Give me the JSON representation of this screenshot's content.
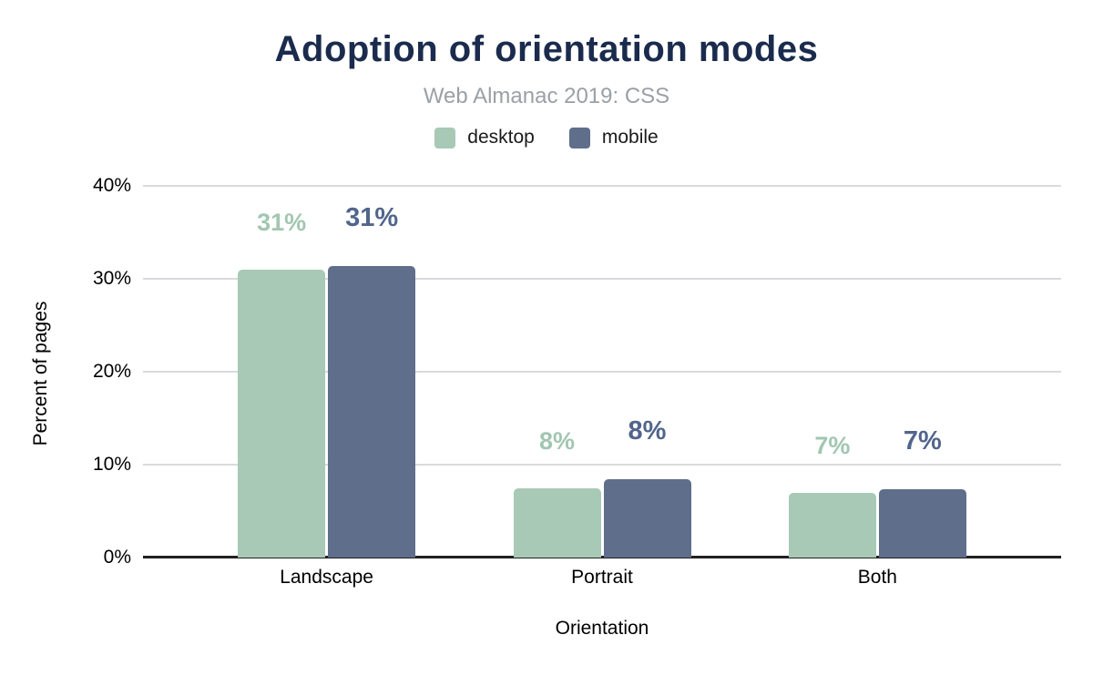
{
  "figure": {
    "title": "Adoption of orientation modes",
    "subtitle": "Web Almanac 2019: CSS"
  },
  "chart_data": {
    "type": "bar",
    "title": "Adoption of orientation modes",
    "subtitle": "Web Almanac 2019: CSS",
    "categories": [
      "Landscape",
      "Portrait",
      "Both"
    ],
    "series": [
      {
        "name": "desktop",
        "values": [
          31.0,
          7.5,
          7.0
        ],
        "labels": [
          "31%",
          "8%",
          "7%"
        ],
        "color": "#a8c9b6",
        "label_color": "#a2c6b1"
      },
      {
        "name": "mobile",
        "values": [
          31.4,
          8.4,
          7.4
        ],
        "labels": [
          "31%",
          "8%",
          "7%"
        ],
        "color": "#5f6e8a",
        "label_color": "#51658c"
      }
    ],
    "xlabel": "Orientation",
    "ylabel": "Percent of pages",
    "ylim": [
      0,
      40
    ],
    "ytick_values": [
      0,
      10,
      20,
      30,
      40
    ],
    "ytick_labels": [
      "0%",
      "10%",
      "20%",
      "30%",
      "40%"
    ],
    "grid": true,
    "legend_position": "top"
  },
  "colors": {
    "title": "#1b2b4d",
    "subtitle": "#9aa0a6",
    "gridline": "#d9dadc",
    "baseline": "#212121",
    "axis_text": "#000000",
    "background": "#ffffff"
  }
}
